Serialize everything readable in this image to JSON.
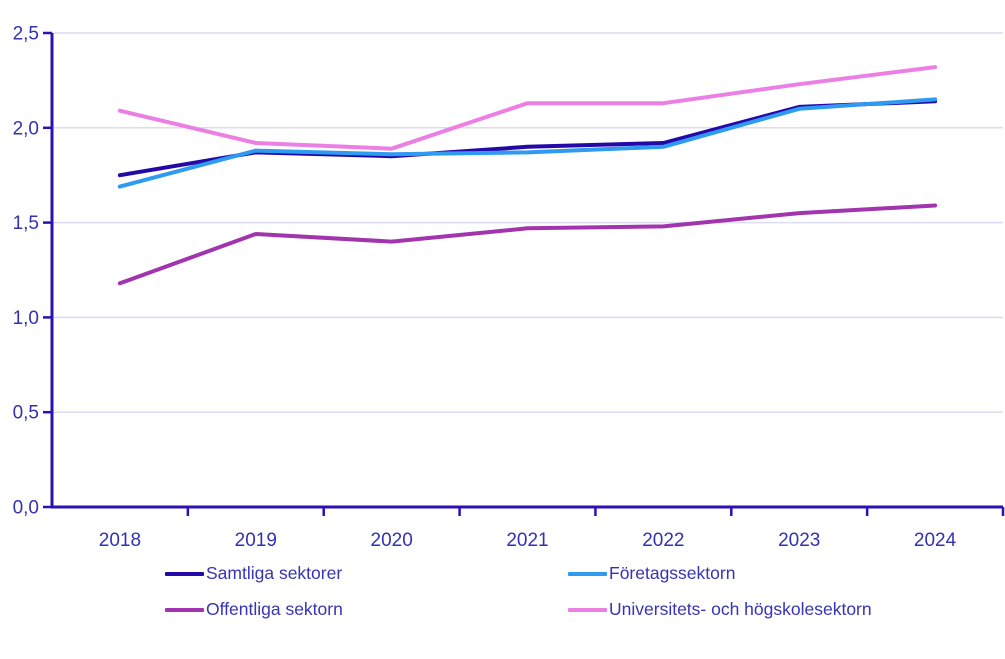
{
  "chart_data": {
    "type": "line",
    "title": "",
    "xlabel": "",
    "ylabel": "",
    "x_categories": [
      "2018",
      "2019",
      "2020",
      "2021",
      "2022",
      "2023",
      "2024"
    ],
    "y_tick_labels": [
      "0,0",
      "0,5",
      "1,0",
      "1,5",
      "2,0",
      "2,5"
    ],
    "ylim": [
      0,
      2.5
    ],
    "y_step": 0.5,
    "grid": "horizontal",
    "legend_position": "bottom",
    "decimal_style": "comma",
    "series": [
      {
        "id": "samtliga-sektorer",
        "name": "Samtliga sektorer",
        "color": "#2408a8",
        "values": [
          1.75,
          1.87,
          1.85,
          1.9,
          1.92,
          2.11,
          2.14
        ]
      },
      {
        "id": "foretagssektorn",
        "name": "Företagssektorn",
        "color": "#2e9af0",
        "values": [
          1.69,
          1.88,
          1.86,
          1.87,
          1.9,
          2.1,
          2.15
        ]
      },
      {
        "id": "offentliga-sektorn",
        "name": "Offentliga sektorn",
        "color": "#a234ae",
        "values": [
          1.18,
          1.44,
          1.4,
          1.47,
          1.48,
          1.55,
          1.59
        ]
      },
      {
        "id": "universitets-och-hogskolesektorn",
        "name": "Universitets- och högskolesektorn",
        "color": "#ec7fe4",
        "values": [
          2.09,
          1.92,
          1.89,
          2.13,
          2.13,
          2.23,
          2.32
        ]
      }
    ],
    "colors": {
      "axis": "#2a12b2",
      "tick_label": "#3231b3",
      "gridline": "#dcdcf2",
      "background": "#ffffff"
    }
  }
}
